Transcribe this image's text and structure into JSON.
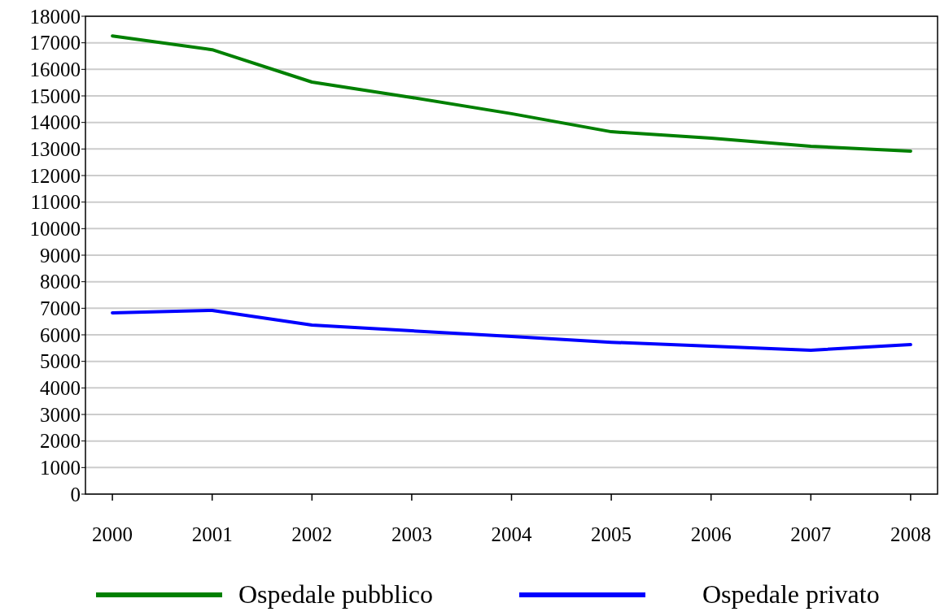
{
  "chart_data": {
    "type": "line",
    "categories": [
      "2000",
      "2001",
      "2002",
      "2003",
      "2004",
      "2005",
      "2006",
      "2007",
      "2008"
    ],
    "series": [
      {
        "name": "Ospedale pubblico",
        "color": "#008000",
        "values": [
          17260,
          16740,
          15520,
          14940,
          14330,
          13650,
          13410,
          13100,
          12920
        ]
      },
      {
        "name": "Ospedale privato",
        "color": "#0000ff",
        "values": [
          6830,
          6920,
          6370,
          6150,
          5940,
          5720,
          5570,
          5420,
          5630
        ]
      }
    ],
    "ylim": [
      0,
      18000
    ],
    "yticks": [
      0,
      1000,
      2000,
      3000,
      4000,
      5000,
      6000,
      7000,
      8000,
      9000,
      10000,
      11000,
      12000,
      13000,
      14000,
      15000,
      16000,
      17000,
      18000
    ],
    "grid": "y",
    "legend": "bottom",
    "line_style": "solid",
    "marker": "none"
  }
}
